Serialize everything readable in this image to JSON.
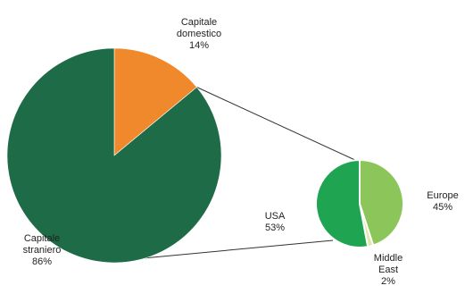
{
  "chart_data": {
    "type": "pie",
    "subtype": "pie-of-pie",
    "title": "",
    "main_pie": {
      "slices": [
        {
          "label_lines": [
            "Capitale",
            "domestico"
          ],
          "value": 14,
          "value_label": "14%",
          "color": "#f0882c"
        },
        {
          "label_lines": [
            "Capitale",
            "straniero"
          ],
          "value": 86,
          "value_label": "86%",
          "color": "#1e6b48"
        }
      ]
    },
    "breakdown_of": "Capitale straniero",
    "secondary_pie": {
      "slices": [
        {
          "label_lines": [
            "Europe"
          ],
          "value": 45,
          "value_label": "45%",
          "color": "#8cc65a"
        },
        {
          "label_lines": [
            "Middle",
            "East"
          ],
          "value": 2,
          "value_label": "2%",
          "color": "#dfe8a6"
        },
        {
          "label_lines": [
            "USA"
          ],
          "value": 53,
          "value_label": "53%",
          "color": "#1fa552"
        }
      ]
    },
    "legend": "none"
  }
}
